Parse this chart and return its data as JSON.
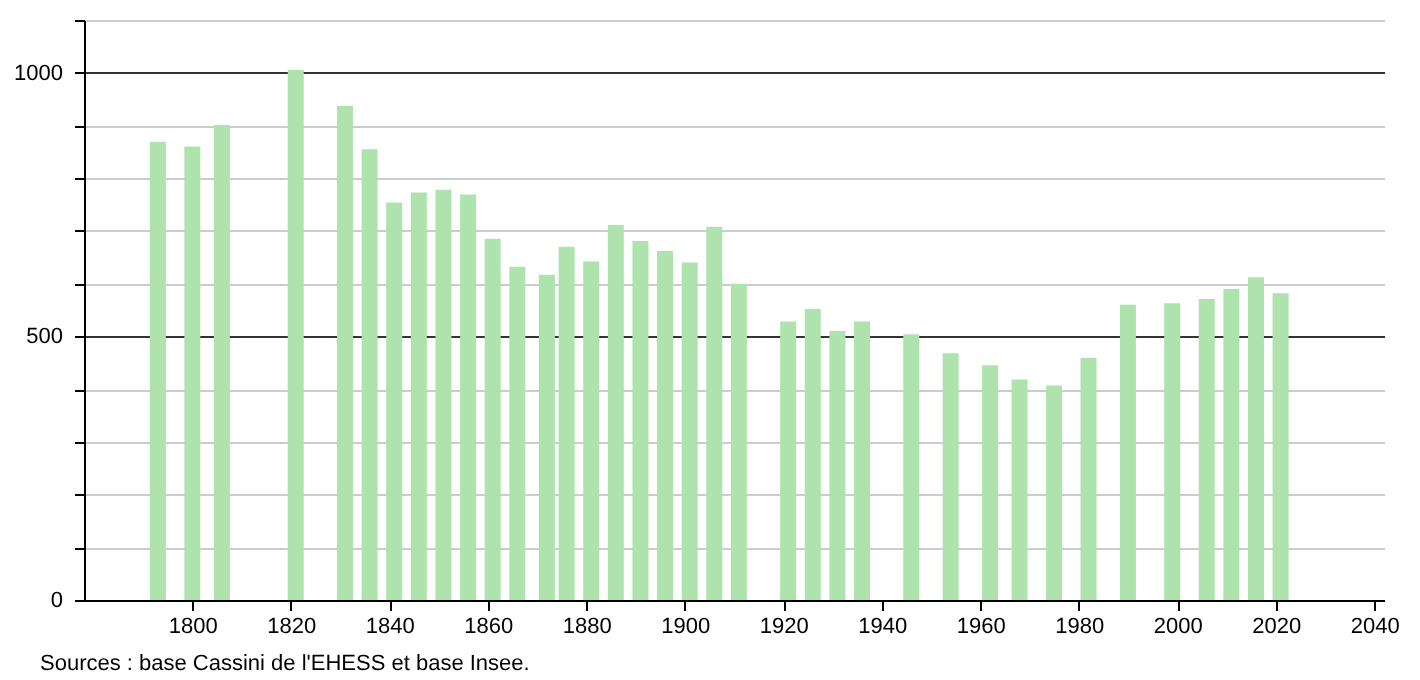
{
  "chart_data": {
    "type": "bar",
    "x": [
      1793,
      1800,
      1806,
      1821,
      1831,
      1836,
      1841,
      1846,
      1851,
      1856,
      1861,
      1866,
      1872,
      1876,
      1881,
      1886,
      1891,
      1896,
      1901,
      1906,
      1911,
      1921,
      1926,
      1931,
      1936,
      1946,
      1954,
      1962,
      1968,
      1975,
      1982,
      1990,
      1999,
      2006,
      2011,
      2016,
      2021
    ],
    "values": [
      869,
      860,
      901,
      1005,
      937,
      855,
      754,
      773,
      778,
      769,
      685,
      632,
      617,
      670,
      642,
      711,
      681,
      662,
      640,
      708,
      600,
      528,
      552,
      510,
      528,
      504,
      468,
      445,
      418,
      407,
      459,
      560,
      563,
      571,
      590,
      612,
      582
    ],
    "color": "#aee3ae",
    "xlim": [
      1778,
      2042
    ],
    "xticks": [
      1800,
      1820,
      1840,
      1860,
      1880,
      1900,
      1920,
      1940,
      1960,
      1980,
      2000,
      2020,
      2040
    ],
    "ylim": [
      0,
      1100
    ],
    "yticks": [
      0,
      {
        "value": 100,
        "label": null
      },
      {
        "value": 200,
        "label": null
      },
      {
        "value": 300,
        "label": null
      },
      {
        "value": 400,
        "label": null
      },
      500,
      {
        "value": 600,
        "label": null
      },
      {
        "value": 700,
        "label": null
      },
      {
        "value": 800,
        "label": null
      },
      {
        "value": 900,
        "label": null
      },
      1000,
      {
        "value": 1100,
        "label": null
      }
    ],
    "grid": "y",
    "annotations": [
      "Sources : base Cassini de l'EHESS et base Insee."
    ]
  }
}
